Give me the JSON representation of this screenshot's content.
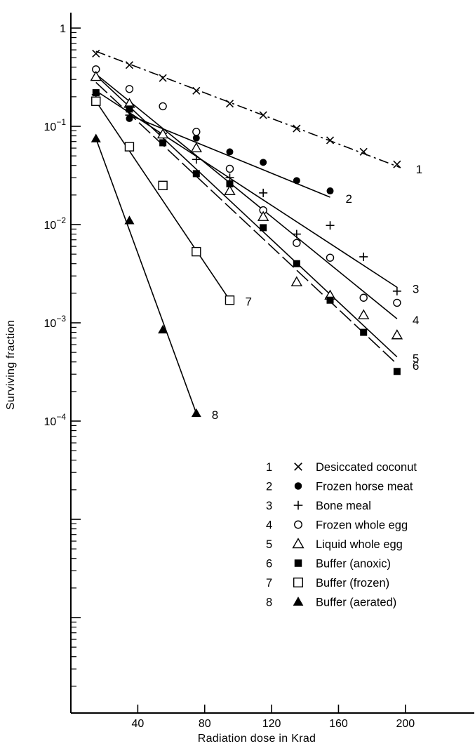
{
  "chart_data": {
    "type": "scatter",
    "title": "",
    "xlabel": "Radiation dose in Krad",
    "ylabel": "Surviving fraction",
    "xscale": "linear",
    "yscale": "log",
    "xlim": [
      0,
      230
    ],
    "ylim": [
      1e-05,
      1
    ],
    "x_ticks": [
      {
        "value": 40,
        "label": "40"
      },
      {
        "value": 80,
        "label": "80"
      },
      {
        "value": 120,
        "label": "120"
      },
      {
        "value": 160,
        "label": "160"
      },
      {
        "value": 200,
        "label": "200"
      }
    ],
    "y_ticks": [
      {
        "value": 1,
        "base": "1",
        "exp": ""
      },
      {
        "value": 0.1,
        "base": "10",
        "exp": "−1"
      },
      {
        "value": 0.01,
        "base": "10",
        "exp": "−2"
      },
      {
        "value": 0.001,
        "base": "10",
        "exp": "−3"
      },
      {
        "value": 0.0001,
        "base": "10",
        "exp": "−4"
      }
    ],
    "grid": false,
    "legend_position": "bottom-right",
    "series": [
      {
        "label": "1",
        "name": "Desiccated coconut",
        "marker": "x",
        "x": [
          15,
          35,
          55,
          75,
          95,
          115,
          135,
          155,
          175,
          195
        ],
        "y": [
          0.55,
          0.42,
          0.31,
          0.23,
          0.17,
          0.13,
          0.095,
          0.072,
          0.055,
          0.041
        ],
        "fit": [
          [
            15,
            0.58
          ],
          [
            197,
            0.038
          ]
        ]
      },
      {
        "label": "2",
        "name": "Frozen horse meat",
        "marker": "filled-circle",
        "x": [
          35,
          75,
          95,
          115,
          135,
          155
        ],
        "y": [
          0.12,
          0.076,
          0.055,
          0.043,
          0.028,
          0.022
        ],
        "fit": [
          [
            35,
            0.13
          ],
          [
            155,
            0.019
          ]
        ]
      },
      {
        "label": "3",
        "name": "Bone meal",
        "marker": "plus",
        "x": [
          15,
          35,
          55,
          75,
          95,
          115,
          135,
          155,
          175,
          195
        ],
        "y": [
          0.21,
          0.13,
          0.085,
          0.046,
          0.03,
          0.021,
          0.008,
          0.0098,
          0.0047,
          0.0021
        ],
        "fit": [
          [
            15,
            0.23
          ],
          [
            195,
            0.0023
          ]
        ]
      },
      {
        "label": "4",
        "name": "Frozen whole egg",
        "marker": "open-circle",
        "x": [
          15,
          35,
          55,
          75,
          95,
          115,
          135,
          155,
          175,
          195
        ],
        "y": [
          0.38,
          0.24,
          0.16,
          0.088,
          0.037,
          0.014,
          0.0065,
          0.0046,
          0.0018,
          0.0016
        ],
        "fit": [
          [
            15,
            0.34
          ],
          [
            195,
            0.0011
          ]
        ]
      },
      {
        "label": "5",
        "name": "Liquid whole egg",
        "marker": "open-triangle",
        "x": [
          15,
          35,
          55,
          75,
          95,
          115,
          135,
          155,
          175,
          195
        ],
        "y": [
          0.32,
          0.17,
          0.083,
          0.06,
          0.022,
          0.012,
          0.0026,
          0.0019,
          0.0012,
          0.00075
        ],
        "fit": [
          [
            15,
            0.33
          ],
          [
            195,
            0.00045
          ]
        ]
      },
      {
        "label": "6",
        "name": "Buffer (anoxic)",
        "marker": "filled-square",
        "x": [
          15,
          35,
          55,
          75,
          95,
          115,
          135,
          155,
          175,
          195
        ],
        "y": [
          0.22,
          0.15,
          0.068,
          0.033,
          0.026,
          0.0093,
          0.004,
          0.0017,
          0.0008,
          0.00032
        ],
        "fit": [
          [
            15,
            0.28
          ],
          [
            195,
            0.00038
          ]
        ]
      },
      {
        "label": "7",
        "name": "Buffer (frozen)",
        "marker": "open-square",
        "x": [
          15,
          35,
          55,
          75,
          95
        ],
        "y": [
          0.18,
          0.062,
          0.025,
          0.0053,
          0.0017
        ],
        "fit": [
          [
            15,
            0.18
          ],
          [
            95,
            0.0017
          ]
        ]
      },
      {
        "label": "8",
        "name": "Buffer (aerated)",
        "marker": "filled-triangle",
        "x": [
          15,
          35,
          55,
          75
        ],
        "y": [
          0.075,
          0.011,
          0.00085,
          0.00012
        ],
        "fit": [
          [
            15,
            0.075
          ],
          [
            75,
            0.00012
          ]
        ]
      }
    ],
    "legend": [
      {
        "num": "1",
        "marker": "x",
        "text": "Desiccated coconut"
      },
      {
        "num": "2",
        "marker": "filled-circle",
        "text": "Frozen horse meat"
      },
      {
        "num": "3",
        "marker": "plus",
        "text": "Bone meal"
      },
      {
        "num": "4",
        "marker": "open-circle",
        "text": "Frozen whole egg"
      },
      {
        "num": "5",
        "marker": "open-triangle",
        "text": "Liquid whole egg"
      },
      {
        "num": "6",
        "marker": "filled-square",
        "text": "Buffer (anoxic)"
      },
      {
        "num": "7",
        "marker": "open-square",
        "text": "Buffer (frozen)"
      },
      {
        "num": "8",
        "marker": "filled-triangle",
        "text": "Buffer (aerated)"
      }
    ]
  }
}
